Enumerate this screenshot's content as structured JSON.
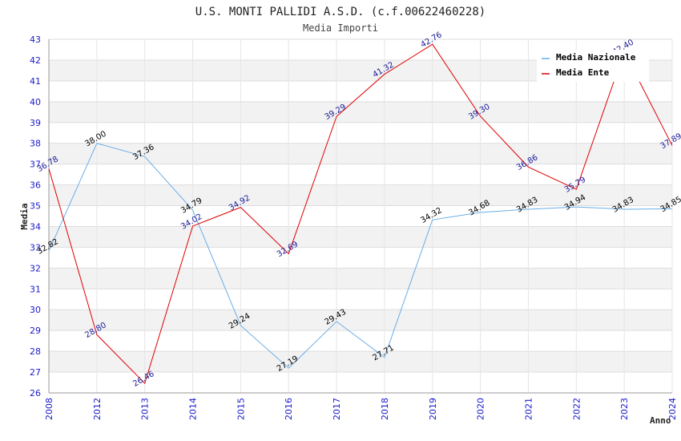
{
  "chart_data": {
    "type": "line",
    "title": "U.S. MONTI PALLIDI A.S.D. (c.f.00622460228)",
    "subtitle": "Media Importi",
    "xlabel": "Anno",
    "ylabel": "Media",
    "categories": [
      "2008",
      "2012",
      "2013",
      "2014",
      "2015",
      "2016",
      "2017",
      "2018",
      "2019",
      "2020",
      "2021",
      "2022",
      "2023",
      "2024"
    ],
    "ylim": [
      26,
      43
    ],
    "yticks": [
      "26",
      "27",
      "28",
      "29",
      "30",
      "31",
      "32",
      "33",
      "34",
      "35",
      "36",
      "37",
      "38",
      "39",
      "40",
      "41",
      "42",
      "43"
    ],
    "grid": true,
    "legend_position": "top-right",
    "series": [
      {
        "name": "Media Nazionale",
        "color": "#6aaee8",
        "label_color": "#000000",
        "values": [
          32.82,
          38.0,
          37.36,
          34.79,
          29.24,
          27.19,
          29.43,
          27.71,
          34.32,
          34.68,
          34.83,
          34.94,
          34.83,
          34.85
        ],
        "labels": [
          "32.82",
          "38.00",
          "37.36",
          "34.79",
          "29.24",
          "27.19",
          "29.43",
          "27.71",
          "34.32",
          "34.68",
          "34.83",
          "34.94",
          "34.83",
          "34.85"
        ]
      },
      {
        "name": "Media Ente",
        "color": "#e00000",
        "label_color": "#1a1a99",
        "values": [
          36.78,
          28.8,
          26.46,
          34.02,
          34.92,
          32.69,
          39.29,
          41.32,
          42.76,
          39.3,
          36.86,
          35.79,
          42.4,
          37.89
        ],
        "labels": [
          "36.78",
          "28.80",
          "26.46",
          "34.02",
          "34.92",
          "32.69",
          "39.29",
          "41.32",
          "42.76",
          "39.30",
          "36.86",
          "35.79",
          "42.40",
          "37.89"
        ]
      }
    ]
  }
}
